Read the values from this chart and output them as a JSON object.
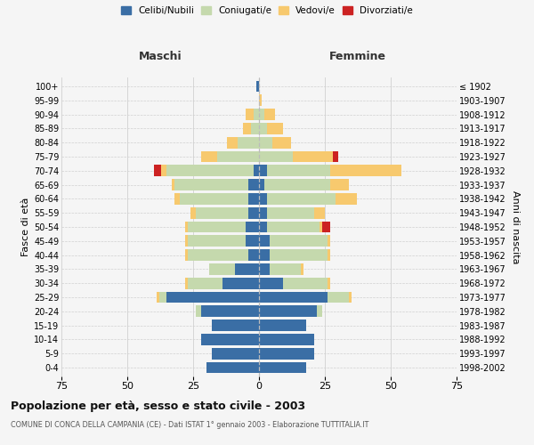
{
  "age_groups": [
    "0-4",
    "5-9",
    "10-14",
    "15-19",
    "20-24",
    "25-29",
    "30-34",
    "35-39",
    "40-44",
    "45-49",
    "50-54",
    "55-59",
    "60-64",
    "65-69",
    "70-74",
    "75-79",
    "80-84",
    "85-89",
    "90-94",
    "95-99",
    "100+"
  ],
  "birth_years": [
    "1998-2002",
    "1993-1997",
    "1988-1992",
    "1983-1987",
    "1978-1982",
    "1973-1977",
    "1968-1972",
    "1963-1967",
    "1958-1962",
    "1953-1957",
    "1948-1952",
    "1943-1947",
    "1938-1942",
    "1933-1937",
    "1928-1932",
    "1923-1927",
    "1918-1922",
    "1913-1917",
    "1908-1912",
    "1903-1907",
    "≤ 1902"
  ],
  "male": {
    "celibi": [
      20,
      18,
      22,
      18,
      22,
      35,
      14,
      9,
      4,
      5,
      5,
      4,
      4,
      4,
      2,
      0,
      0,
      0,
      0,
      0,
      1
    ],
    "coniugati": [
      0,
      0,
      0,
      0,
      2,
      3,
      13,
      10,
      23,
      22,
      22,
      20,
      26,
      28,
      33,
      16,
      8,
      3,
      2,
      0,
      0
    ],
    "vedovi": [
      0,
      0,
      0,
      0,
      0,
      1,
      1,
      0,
      1,
      1,
      1,
      2,
      2,
      1,
      2,
      6,
      4,
      3,
      3,
      0,
      0
    ],
    "divorziati": [
      0,
      0,
      0,
      0,
      0,
      0,
      0,
      0,
      0,
      0,
      0,
      0,
      0,
      0,
      3,
      0,
      0,
      0,
      0,
      0,
      0
    ]
  },
  "female": {
    "nubili": [
      18,
      21,
      21,
      18,
      22,
      26,
      9,
      4,
      4,
      4,
      3,
      3,
      3,
      2,
      3,
      0,
      0,
      0,
      0,
      0,
      0
    ],
    "coniugate": [
      0,
      0,
      0,
      0,
      2,
      8,
      17,
      12,
      22,
      22,
      20,
      18,
      26,
      25,
      24,
      13,
      5,
      3,
      2,
      0,
      0
    ],
    "vedove": [
      0,
      0,
      0,
      0,
      0,
      1,
      1,
      1,
      1,
      1,
      1,
      4,
      8,
      7,
      27,
      15,
      7,
      6,
      4,
      1,
      0
    ],
    "divorziate": [
      0,
      0,
      0,
      0,
      0,
      0,
      0,
      0,
      0,
      0,
      3,
      0,
      0,
      0,
      0,
      2,
      0,
      0,
      0,
      0,
      0
    ]
  },
  "colors": {
    "celibi": "#3a6ea5",
    "coniugati": "#c5d9ad",
    "vedovi": "#f7c96e",
    "divorziati": "#cc2222"
  },
  "xlim": 75,
  "title": "Popolazione per età, sesso e stato civile - 2003",
  "subtitle": "COMUNE DI CONCA DELLA CAMPANIA (CE) - Dati ISTAT 1° gennaio 2003 - Elaborazione TUTTITALIA.IT",
  "ylabel_left": "Fasce di età",
  "ylabel_right": "Anni di nascita",
  "xlabel_left": "Maschi",
  "xlabel_right": "Femmine",
  "bg_color": "#f5f5f5",
  "grid_color": "#d0d0d0"
}
